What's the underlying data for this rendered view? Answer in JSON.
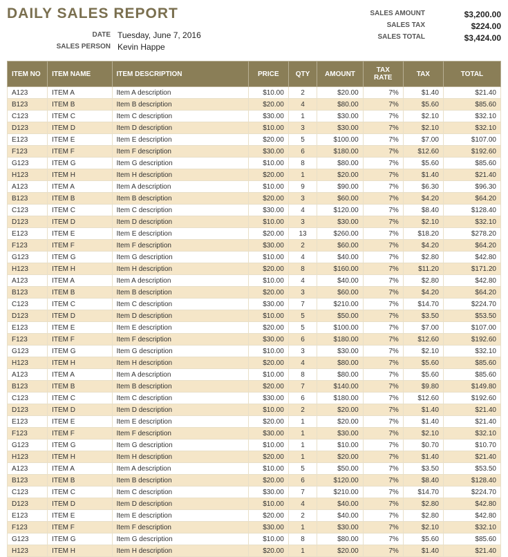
{
  "header": {
    "title": "DAILY SALES REPORT",
    "date_label": "DATE",
    "date_value": "Tuesday, June 7, 2016",
    "salesperson_label": "SALES PERSON",
    "salesperson_value": "Kevin Happe",
    "summary": {
      "amount_label": "SALES AMOUNT",
      "amount_value": "$3,200.00",
      "tax_label": "SALES TAX",
      "tax_value": "$224.00",
      "total_label": "SALES TOTAL",
      "total_value": "$3,424.00"
    }
  },
  "table": {
    "columns": {
      "itemno": "ITEM NO",
      "itemname": "ITEM NAME",
      "desc": "ITEM DESCRIPTION",
      "price": "PRICE",
      "qty": "QTY",
      "amount": "AMOUNT",
      "taxrate": "TAX RATE",
      "tax": "TAX",
      "total": "TOTAL"
    },
    "styling": {
      "header_bg": "#8a7e57",
      "header_text": "#ffffff",
      "row_odd_bg": "#ffffff",
      "row_even_bg": "#f5e6c8",
      "border_color": "#e8dfc8",
      "font_size": 10
    },
    "rows": [
      {
        "itemno": "A123",
        "itemname": "ITEM A",
        "desc": "Item A description",
        "price": "$10.00",
        "qty": "2",
        "amount": "$20.00",
        "taxrate": "7%",
        "tax": "$1.40",
        "total": "$21.40"
      },
      {
        "itemno": "B123",
        "itemname": "ITEM B",
        "desc": "Item B description",
        "price": "$20.00",
        "qty": "4",
        "amount": "$80.00",
        "taxrate": "7%",
        "tax": "$5.60",
        "total": "$85.60"
      },
      {
        "itemno": "C123",
        "itemname": "ITEM C",
        "desc": "Item C description",
        "price": "$30.00",
        "qty": "1",
        "amount": "$30.00",
        "taxrate": "7%",
        "tax": "$2.10",
        "total": "$32.10"
      },
      {
        "itemno": "D123",
        "itemname": "ITEM D",
        "desc": "Item D description",
        "price": "$10.00",
        "qty": "3",
        "amount": "$30.00",
        "taxrate": "7%",
        "tax": "$2.10",
        "total": "$32.10"
      },
      {
        "itemno": "E123",
        "itemname": "ITEM E",
        "desc": "Item E description",
        "price": "$20.00",
        "qty": "5",
        "amount": "$100.00",
        "taxrate": "7%",
        "tax": "$7.00",
        "total": "$107.00"
      },
      {
        "itemno": "F123",
        "itemname": "ITEM F",
        "desc": "Item F description",
        "price": "$30.00",
        "qty": "6",
        "amount": "$180.00",
        "taxrate": "7%",
        "tax": "$12.60",
        "total": "$192.60"
      },
      {
        "itemno": "G123",
        "itemname": "ITEM G",
        "desc": "Item G description",
        "price": "$10.00",
        "qty": "8",
        "amount": "$80.00",
        "taxrate": "7%",
        "tax": "$5.60",
        "total": "$85.60"
      },
      {
        "itemno": "H123",
        "itemname": "ITEM H",
        "desc": "Item H description",
        "price": "$20.00",
        "qty": "1",
        "amount": "$20.00",
        "taxrate": "7%",
        "tax": "$1.40",
        "total": "$21.40"
      },
      {
        "itemno": "A123",
        "itemname": "ITEM A",
        "desc": "Item A description",
        "price": "$10.00",
        "qty": "9",
        "amount": "$90.00",
        "taxrate": "7%",
        "tax": "$6.30",
        "total": "$96.30"
      },
      {
        "itemno": "B123",
        "itemname": "ITEM B",
        "desc": "Item B description",
        "price": "$20.00",
        "qty": "3",
        "amount": "$60.00",
        "taxrate": "7%",
        "tax": "$4.20",
        "total": "$64.20"
      },
      {
        "itemno": "C123",
        "itemname": "ITEM C",
        "desc": "Item C description",
        "price": "$30.00",
        "qty": "4",
        "amount": "$120.00",
        "taxrate": "7%",
        "tax": "$8.40",
        "total": "$128.40"
      },
      {
        "itemno": "D123",
        "itemname": "ITEM D",
        "desc": "Item D description",
        "price": "$10.00",
        "qty": "3",
        "amount": "$30.00",
        "taxrate": "7%",
        "tax": "$2.10",
        "total": "$32.10"
      },
      {
        "itemno": "E123",
        "itemname": "ITEM E",
        "desc": "Item E description",
        "price": "$20.00",
        "qty": "13",
        "amount": "$260.00",
        "taxrate": "7%",
        "tax": "$18.20",
        "total": "$278.20"
      },
      {
        "itemno": "F123",
        "itemname": "ITEM F",
        "desc": "Item F description",
        "price": "$30.00",
        "qty": "2",
        "amount": "$60.00",
        "taxrate": "7%",
        "tax": "$4.20",
        "total": "$64.20"
      },
      {
        "itemno": "G123",
        "itemname": "ITEM G",
        "desc": "Item G description",
        "price": "$10.00",
        "qty": "4",
        "amount": "$40.00",
        "taxrate": "7%",
        "tax": "$2.80",
        "total": "$42.80"
      },
      {
        "itemno": "H123",
        "itemname": "ITEM H",
        "desc": "Item H description",
        "price": "$20.00",
        "qty": "8",
        "amount": "$160.00",
        "taxrate": "7%",
        "tax": "$11.20",
        "total": "$171.20"
      },
      {
        "itemno": "A123",
        "itemname": "ITEM A",
        "desc": "Item A description",
        "price": "$10.00",
        "qty": "4",
        "amount": "$40.00",
        "taxrate": "7%",
        "tax": "$2.80",
        "total": "$42.80"
      },
      {
        "itemno": "B123",
        "itemname": "ITEM B",
        "desc": "Item B description",
        "price": "$20.00",
        "qty": "3",
        "amount": "$60.00",
        "taxrate": "7%",
        "tax": "$4.20",
        "total": "$64.20"
      },
      {
        "itemno": "C123",
        "itemname": "ITEM C",
        "desc": "Item C description",
        "price": "$30.00",
        "qty": "7",
        "amount": "$210.00",
        "taxrate": "7%",
        "tax": "$14.70",
        "total": "$224.70"
      },
      {
        "itemno": "D123",
        "itemname": "ITEM D",
        "desc": "Item D description",
        "price": "$10.00",
        "qty": "5",
        "amount": "$50.00",
        "taxrate": "7%",
        "tax": "$3.50",
        "total": "$53.50"
      },
      {
        "itemno": "E123",
        "itemname": "ITEM E",
        "desc": "Item E description",
        "price": "$20.00",
        "qty": "5",
        "amount": "$100.00",
        "taxrate": "7%",
        "tax": "$7.00",
        "total": "$107.00"
      },
      {
        "itemno": "F123",
        "itemname": "ITEM F",
        "desc": "Item F description",
        "price": "$30.00",
        "qty": "6",
        "amount": "$180.00",
        "taxrate": "7%",
        "tax": "$12.60",
        "total": "$192.60"
      },
      {
        "itemno": "G123",
        "itemname": "ITEM G",
        "desc": "Item G description",
        "price": "$10.00",
        "qty": "3",
        "amount": "$30.00",
        "taxrate": "7%",
        "tax": "$2.10",
        "total": "$32.10"
      },
      {
        "itemno": "H123",
        "itemname": "ITEM H",
        "desc": "Item H description",
        "price": "$20.00",
        "qty": "4",
        "amount": "$80.00",
        "taxrate": "7%",
        "tax": "$5.60",
        "total": "$85.60"
      },
      {
        "itemno": "A123",
        "itemname": "ITEM A",
        "desc": "Item A description",
        "price": "$10.00",
        "qty": "8",
        "amount": "$80.00",
        "taxrate": "7%",
        "tax": "$5.60",
        "total": "$85.60"
      },
      {
        "itemno": "B123",
        "itemname": "ITEM B",
        "desc": "Item B description",
        "price": "$20.00",
        "qty": "7",
        "amount": "$140.00",
        "taxrate": "7%",
        "tax": "$9.80",
        "total": "$149.80"
      },
      {
        "itemno": "C123",
        "itemname": "ITEM C",
        "desc": "Item C description",
        "price": "$30.00",
        "qty": "6",
        "amount": "$180.00",
        "taxrate": "7%",
        "tax": "$12.60",
        "total": "$192.60"
      },
      {
        "itemno": "D123",
        "itemname": "ITEM D",
        "desc": "Item D description",
        "price": "$10.00",
        "qty": "2",
        "amount": "$20.00",
        "taxrate": "7%",
        "tax": "$1.40",
        "total": "$21.40"
      },
      {
        "itemno": "E123",
        "itemname": "ITEM E",
        "desc": "Item E description",
        "price": "$20.00",
        "qty": "1",
        "amount": "$20.00",
        "taxrate": "7%",
        "tax": "$1.40",
        "total": "$21.40"
      },
      {
        "itemno": "F123",
        "itemname": "ITEM F",
        "desc": "Item F description",
        "price": "$30.00",
        "qty": "1",
        "amount": "$30.00",
        "taxrate": "7%",
        "tax": "$2.10",
        "total": "$32.10"
      },
      {
        "itemno": "G123",
        "itemname": "ITEM G",
        "desc": "Item G description",
        "price": "$10.00",
        "qty": "1",
        "amount": "$10.00",
        "taxrate": "7%",
        "tax": "$0.70",
        "total": "$10.70"
      },
      {
        "itemno": "H123",
        "itemname": "ITEM H",
        "desc": "Item H description",
        "price": "$20.00",
        "qty": "1",
        "amount": "$20.00",
        "taxrate": "7%",
        "tax": "$1.40",
        "total": "$21.40"
      },
      {
        "itemno": "A123",
        "itemname": "ITEM A",
        "desc": "Item A description",
        "price": "$10.00",
        "qty": "5",
        "amount": "$50.00",
        "taxrate": "7%",
        "tax": "$3.50",
        "total": "$53.50"
      },
      {
        "itemno": "B123",
        "itemname": "ITEM B",
        "desc": "Item B description",
        "price": "$20.00",
        "qty": "6",
        "amount": "$120.00",
        "taxrate": "7%",
        "tax": "$8.40",
        "total": "$128.40"
      },
      {
        "itemno": "C123",
        "itemname": "ITEM C",
        "desc": "Item C description",
        "price": "$30.00",
        "qty": "7",
        "amount": "$210.00",
        "taxrate": "7%",
        "tax": "$14.70",
        "total": "$224.70"
      },
      {
        "itemno": "D123",
        "itemname": "ITEM D",
        "desc": "Item D description",
        "price": "$10.00",
        "qty": "4",
        "amount": "$40.00",
        "taxrate": "7%",
        "tax": "$2.80",
        "total": "$42.80"
      },
      {
        "itemno": "E123",
        "itemname": "ITEM E",
        "desc": "Item E description",
        "price": "$20.00",
        "qty": "2",
        "amount": "$40.00",
        "taxrate": "7%",
        "tax": "$2.80",
        "total": "$42.80"
      },
      {
        "itemno": "F123",
        "itemname": "ITEM F",
        "desc": "Item F description",
        "price": "$30.00",
        "qty": "1",
        "amount": "$30.00",
        "taxrate": "7%",
        "tax": "$2.10",
        "total": "$32.10"
      },
      {
        "itemno": "G123",
        "itemname": "ITEM G",
        "desc": "Item G description",
        "price": "$10.00",
        "qty": "8",
        "amount": "$80.00",
        "taxrate": "7%",
        "tax": "$5.60",
        "total": "$85.60"
      },
      {
        "itemno": "H123",
        "itemname": "ITEM H",
        "desc": "Item H description",
        "price": "$20.00",
        "qty": "1",
        "amount": "$20.00",
        "taxrate": "7%",
        "tax": "$1.40",
        "total": "$21.40"
      }
    ]
  }
}
